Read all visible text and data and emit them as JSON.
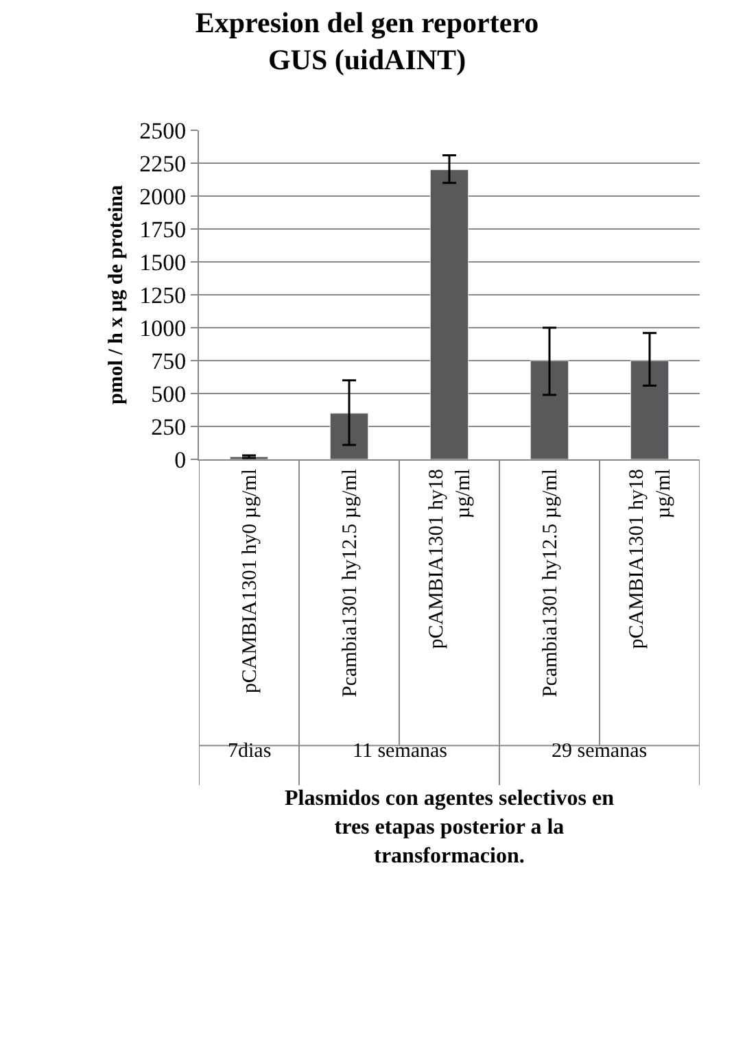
{
  "chart_data": {
    "type": "bar",
    "title": "Expresion del gen reportero GUS (uidAINT)",
    "ylabel": "pmol / h x µg de proteina",
    "xlabel": "Plasmidos con agentes selectivos en tres etapas posterior a la transformacion.",
    "categories": [
      "pCAMBIA1301 hy0 µg/ml",
      "Pcambia1301 hy12.5 µg/ml",
      "pCAMBIA1301 hy18 µg/ml",
      "Pcambia1301 hy12.5 µg/ml",
      "pCAMBIA1301 hy18 µg/ml"
    ],
    "values": [
      20,
      350,
      2200,
      750,
      750
    ],
    "errors": [
      10,
      [
        110,
        600
      ],
      [
        2100,
        2310
      ],
      [
        490,
        1000
      ],
      [
        560,
        960
      ]
    ],
    "color": "#595959",
    "ylim": [
      0,
      2500
    ],
    "yticks": [
      0,
      250,
      500,
      750,
      1000,
      1250,
      1500,
      1750,
      2000,
      2250,
      2500
    ],
    "grid": "y",
    "annotations": [
      "7dias",
      "11 semanas",
      "29 semanas"
    ]
  }
}
